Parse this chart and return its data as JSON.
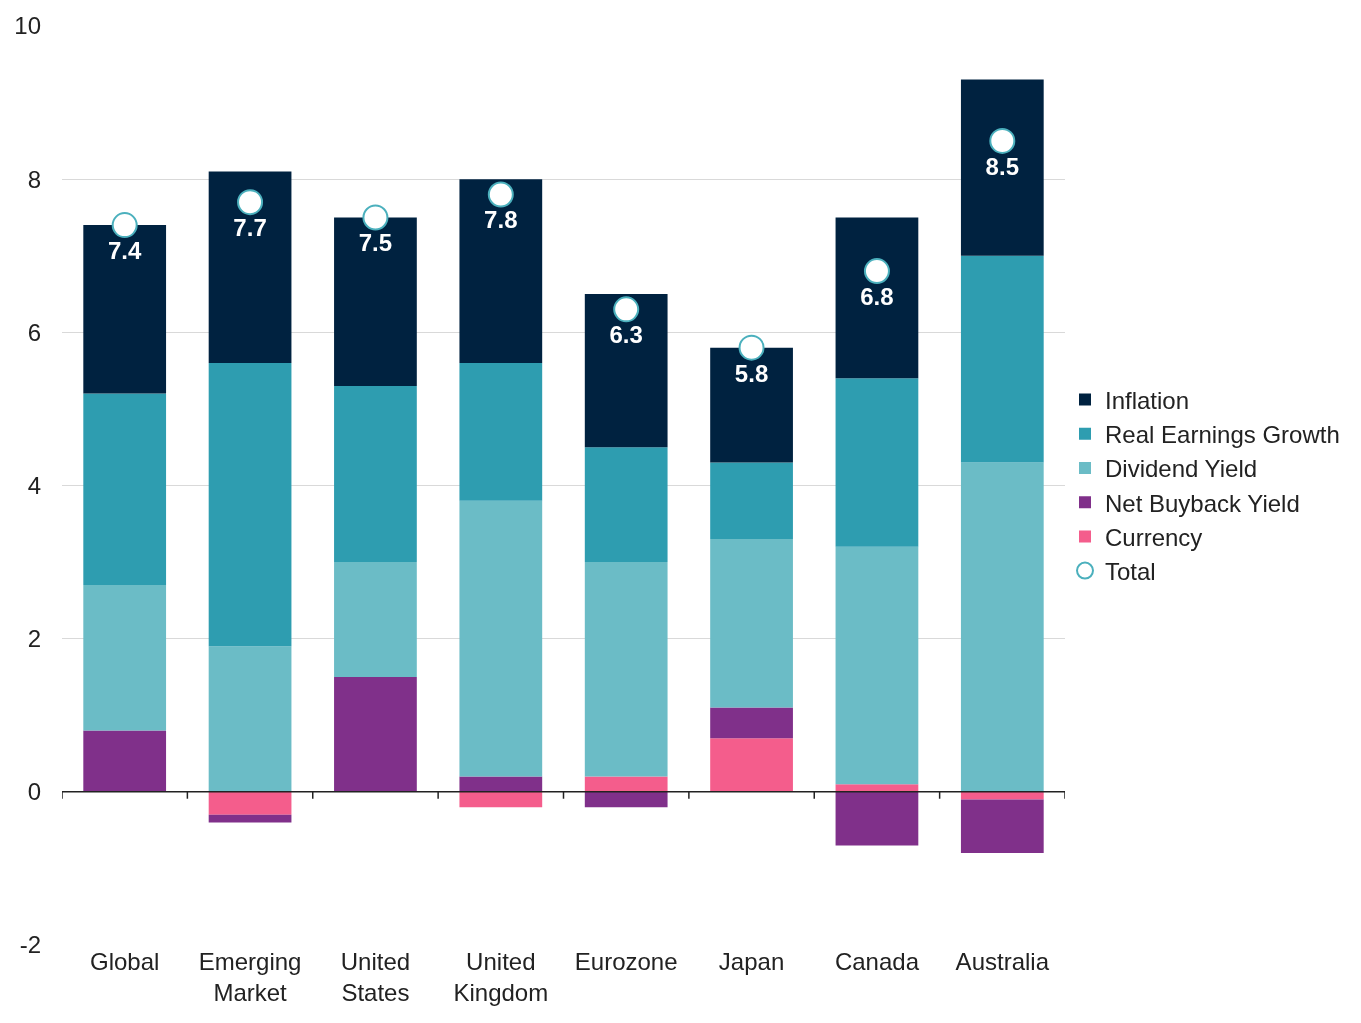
{
  "chart_data": {
    "type": "bar",
    "stacked": true,
    "categories": [
      "Global",
      "Emerging Market",
      "United States",
      "United Kingdom",
      "Eurozone",
      "Japan",
      "Canada",
      "Australia"
    ],
    "series": [
      {
        "name": "Currency",
        "color": "#f45d8c",
        "values": [
          0,
          -0.3,
          0,
          -0.2,
          0.2,
          0.7,
          0.1,
          -0.1
        ]
      },
      {
        "name": "Net Buyback Yield",
        "color": "#80308a",
        "values": [
          0.8,
          -0.1,
          1.5,
          0.2,
          -0.2,
          0.4,
          -0.7,
          -0.7
        ]
      },
      {
        "name": "Dividend Yield",
        "color": "#6bbcc6",
        "values": [
          1.9,
          1.9,
          1.5,
          3.6,
          2.8,
          2.2,
          3.1,
          4.3
        ]
      },
      {
        "name": "Real Earnings Growth",
        "color": "#2e9db0",
        "values": [
          2.5,
          3.7,
          2.3,
          1.8,
          1.5,
          1.0,
          2.2,
          2.7
        ]
      },
      {
        "name": "Inflation",
        "color": "#002240",
        "values": [
          2.2,
          2.5,
          2.2,
          2.4,
          2.0,
          1.5,
          2.1,
          2.3
        ]
      },
      {
        "name": "Total",
        "type": "scatter",
        "marker": "circle",
        "color": "#4bb0bd",
        "values": [
          7.4,
          7.7,
          7.5,
          7.8,
          6.3,
          5.8,
          6.8,
          8.5
        ],
        "value_labels": [
          "7.4",
          "7.7",
          "7.5",
          "7.8",
          "6.3",
          "5.8",
          "6.8",
          "8.5"
        ]
      }
    ],
    "ylim": [
      -2,
      10
    ],
    "yticks": [
      -2,
      0,
      2,
      4,
      6,
      8,
      10
    ],
    "grid": "y",
    "legend": "right"
  }
}
